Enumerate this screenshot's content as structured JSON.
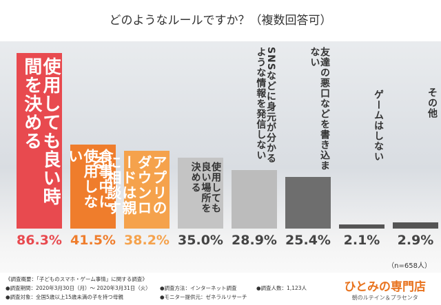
{
  "chart_data": {
    "type": "bar",
    "title": "どのようなルールですか？（複数回答可）",
    "categories": [
      "使用しても良い時間を決める",
      "食事中に使用しない",
      "アプリのダウンロードは親に相談する",
      "使用しても良い場所を決める",
      "SNSなどに身元が分かるような情報を発信しない",
      "友達の悪口などを書き込まない",
      "ゲームはしない",
      "その他"
    ],
    "values": [
      86.3,
      41.5,
      38.2,
      35.0,
      28.9,
      25.4,
      2.1,
      2.9
    ],
    "value_labels": [
      "86.3%",
      "41.5%",
      "38.2%",
      "35.0%",
      "28.9%",
      "25.4%",
      "2.1%",
      "2.9%"
    ],
    "colors": [
      "#e84a4f",
      "#ef7d2c",
      "#f5a24c",
      "#c4c4c4",
      "#bcbcbc",
      "#6e6e6e",
      "#555555",
      "#555555"
    ],
    "note": "（n=658人）"
  },
  "footer": {
    "lines": [
      "《調査概要：「子どものスマホ・ゲーム事情」に関する調査》",
      "●調査期間：2020年3月30日（月）～ 2020年3月31日（火）",
      "●調査対象：全国5歳以上15歳未満の子を持つ母親",
      "●調査方法：インターネット調査",
      "●モニター提供元：ゼネラルリサーチ",
      "●調査人数：1,123人"
    ],
    "logo": "ひとみの専門店",
    "tagline": "朝のルテイン＆プラセンタ"
  }
}
